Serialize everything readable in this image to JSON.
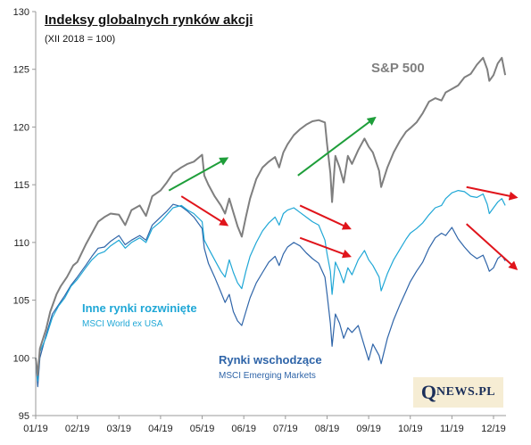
{
  "title": "Indeksy globalnych rynków akcji",
  "subtitle": "(XII 2018 = 100)",
  "logo": {
    "q": "Q",
    "rest": "NEWS.PL"
  },
  "colors": {
    "sp500": "#7f7f7f",
    "developed": "#1fa7d6",
    "emerging": "#2e64a8",
    "up_arrow": "#1e9e3a",
    "down_arrow": "#e0141b"
  },
  "labels": {
    "sp500": "S&P 500",
    "developed": "Inne rynki rozwinięte",
    "developed_sub": "MSCI World ex USA",
    "emerging": "Rynki wschodzące",
    "emerging_sub": "MSCI Emerging Markets"
  },
  "chart_data": {
    "type": "line",
    "title": "Indeksy globalnych rynków akcji",
    "subtitle": "(XII 2018 = 100)",
    "xlabel": "",
    "ylabel": "",
    "x_ticks": [
      "01/19",
      "02/19",
      "03/19",
      "04/19",
      "05/19",
      "06/19",
      "07/19",
      "08/19",
      "09/19",
      "10/19",
      "11/19",
      "12/19"
    ],
    "y_ticks": [
      95,
      100,
      105,
      110,
      115,
      120,
      125,
      130
    ],
    "ylim": [
      95,
      130
    ],
    "xlim": [
      0,
      11.3
    ],
    "grid": false,
    "series": [
      {
        "name": "S&P 500",
        "points": [
          [
            0,
            100
          ],
          [
            0.05,
            98.5
          ],
          [
            0.1,
            100.8
          ],
          [
            0.25,
            102.5
          ],
          [
            0.35,
            104
          ],
          [
            0.5,
            105.5
          ],
          [
            0.6,
            106.2
          ],
          [
            0.75,
            107
          ],
          [
            0.9,
            108
          ],
          [
            1,
            108.3
          ],
          [
            1.2,
            109.8
          ],
          [
            1.35,
            110.8
          ],
          [
            1.5,
            111.8
          ],
          [
            1.65,
            112.2
          ],
          [
            1.8,
            112.5
          ],
          [
            2,
            112.4
          ],
          [
            2.15,
            111.5
          ],
          [
            2.3,
            112.8
          ],
          [
            2.5,
            113.2
          ],
          [
            2.65,
            112.3
          ],
          [
            2.8,
            114
          ],
          [
            3,
            114.5
          ],
          [
            3.15,
            115.2
          ],
          [
            3.3,
            116
          ],
          [
            3.5,
            116.5
          ],
          [
            3.65,
            116.8
          ],
          [
            3.8,
            117
          ],
          [
            4,
            117.6
          ],
          [
            4.05,
            115.8
          ],
          [
            4.15,
            115
          ],
          [
            4.3,
            114
          ],
          [
            4.45,
            113.2
          ],
          [
            4.55,
            112.5
          ],
          [
            4.65,
            113.8
          ],
          [
            4.75,
            112.6
          ],
          [
            4.85,
            111.4
          ],
          [
            4.95,
            110.5
          ],
          [
            5.05,
            112.2
          ],
          [
            5.15,
            113.8
          ],
          [
            5.3,
            115.5
          ],
          [
            5.45,
            116.5
          ],
          [
            5.6,
            117
          ],
          [
            5.75,
            117.4
          ],
          [
            5.85,
            116.5
          ],
          [
            5.95,
            117.8
          ],
          [
            6.05,
            118.5
          ],
          [
            6.2,
            119.3
          ],
          [
            6.35,
            119.8
          ],
          [
            6.5,
            120.2
          ],
          [
            6.65,
            120.5
          ],
          [
            6.8,
            120.6
          ],
          [
            6.95,
            120.4
          ],
          [
            7,
            118.5
          ],
          [
            7.08,
            116
          ],
          [
            7.12,
            113.5
          ],
          [
            7.2,
            117.5
          ],
          [
            7.3,
            116.5
          ],
          [
            7.4,
            115.2
          ],
          [
            7.5,
            117.5
          ],
          [
            7.6,
            116.8
          ],
          [
            7.75,
            118
          ],
          [
            7.9,
            119
          ],
          [
            8,
            118.3
          ],
          [
            8.1,
            117.8
          ],
          [
            8.25,
            116.2
          ],
          [
            8.3,
            114.8
          ],
          [
            8.45,
            116.5
          ],
          [
            8.6,
            117.8
          ],
          [
            8.75,
            118.8
          ],
          [
            8.9,
            119.6
          ],
          [
            9,
            119.9
          ],
          [
            9.15,
            120.4
          ],
          [
            9.3,
            121.2
          ],
          [
            9.45,
            122.2
          ],
          [
            9.6,
            122.5
          ],
          [
            9.75,
            122.3
          ],
          [
            9.85,
            123
          ],
          [
            10,
            123.3
          ],
          [
            10.15,
            123.6
          ],
          [
            10.3,
            124.3
          ],
          [
            10.45,
            124.6
          ],
          [
            10.6,
            125.4
          ],
          [
            10.75,
            126
          ],
          [
            10.85,
            125
          ],
          [
            10.9,
            124
          ],
          [
            11,
            124.5
          ],
          [
            11.1,
            125.5
          ],
          [
            11.2,
            126
          ],
          [
            11.28,
            124.5
          ]
        ]
      },
      {
        "name": "MSCI World ex USA",
        "points": [
          [
            0,
            100
          ],
          [
            0.05,
            98
          ],
          [
            0.1,
            100.5
          ],
          [
            0.25,
            101.8
          ],
          [
            0.4,
            103.5
          ],
          [
            0.55,
            104.5
          ],
          [
            0.7,
            105.2
          ],
          [
            0.85,
            106.2
          ],
          [
            1,
            106.8
          ],
          [
            1.2,
            107.8
          ],
          [
            1.35,
            108.5
          ],
          [
            1.5,
            109
          ],
          [
            1.65,
            109.2
          ],
          [
            1.8,
            109.7
          ],
          [
            2,
            110.2
          ],
          [
            2.15,
            109.5
          ],
          [
            2.3,
            110
          ],
          [
            2.5,
            110.4
          ],
          [
            2.65,
            110
          ],
          [
            2.8,
            111.2
          ],
          [
            3,
            111.8
          ],
          [
            3.15,
            112.4
          ],
          [
            3.3,
            113
          ],
          [
            3.5,
            113.2
          ],
          [
            3.65,
            112.8
          ],
          [
            3.8,
            112.5
          ],
          [
            4,
            111.8
          ],
          [
            4.05,
            110.2
          ],
          [
            4.15,
            109.5
          ],
          [
            4.3,
            108.5
          ],
          [
            4.45,
            107.5
          ],
          [
            4.55,
            107
          ],
          [
            4.65,
            108.5
          ],
          [
            4.75,
            107.4
          ],
          [
            4.85,
            106.5
          ],
          [
            4.95,
            106
          ],
          [
            5.05,
            107.5
          ],
          [
            5.15,
            108.8
          ],
          [
            5.3,
            110
          ],
          [
            5.45,
            111
          ],
          [
            5.6,
            111.7
          ],
          [
            5.75,
            112.2
          ],
          [
            5.85,
            111.5
          ],
          [
            5.95,
            112.5
          ],
          [
            6.05,
            112.8
          ],
          [
            6.2,
            113
          ],
          [
            6.35,
            112.6
          ],
          [
            6.5,
            112.2
          ],
          [
            6.65,
            111.8
          ],
          [
            6.8,
            111.5
          ],
          [
            6.95,
            110.2
          ],
          [
            7,
            109
          ],
          [
            7.08,
            107.5
          ],
          [
            7.12,
            105.5
          ],
          [
            7.2,
            108.3
          ],
          [
            7.3,
            107.5
          ],
          [
            7.4,
            106.5
          ],
          [
            7.5,
            107.8
          ],
          [
            7.6,
            107.2
          ],
          [
            7.75,
            108.5
          ],
          [
            7.9,
            109.3
          ],
          [
            8,
            108.5
          ],
          [
            8.1,
            108
          ],
          [
            8.25,
            107
          ],
          [
            8.3,
            105.8
          ],
          [
            8.45,
            107.3
          ],
          [
            8.6,
            108.5
          ],
          [
            8.75,
            109.4
          ],
          [
            8.9,
            110.3
          ],
          [
            9,
            110.8
          ],
          [
            9.15,
            111.2
          ],
          [
            9.3,
            111.7
          ],
          [
            9.45,
            112.4
          ],
          [
            9.6,
            113
          ],
          [
            9.75,
            113.2
          ],
          [
            9.85,
            113.8
          ],
          [
            10,
            114.3
          ],
          [
            10.15,
            114.5
          ],
          [
            10.3,
            114.4
          ],
          [
            10.45,
            114
          ],
          [
            10.6,
            113.9
          ],
          [
            10.75,
            114.2
          ],
          [
            10.85,
            113.3
          ],
          [
            10.9,
            112.5
          ],
          [
            11,
            113
          ],
          [
            11.1,
            113.5
          ],
          [
            11.2,
            113.8
          ],
          [
            11.28,
            113.2
          ]
        ]
      },
      {
        "name": "MSCI Emerging Markets",
        "points": [
          [
            0,
            100
          ],
          [
            0.05,
            97.5
          ],
          [
            0.1,
            100
          ],
          [
            0.25,
            102
          ],
          [
            0.4,
            103.8
          ],
          [
            0.55,
            104.6
          ],
          [
            0.7,
            105.4
          ],
          [
            0.85,
            106.3
          ],
          [
            1,
            107
          ],
          [
            1.2,
            108
          ],
          [
            1.35,
            108.8
          ],
          [
            1.5,
            109.5
          ],
          [
            1.65,
            109.6
          ],
          [
            1.8,
            110.1
          ],
          [
            2,
            110.6
          ],
          [
            2.15,
            109.8
          ],
          [
            2.3,
            110.2
          ],
          [
            2.5,
            110.6
          ],
          [
            2.65,
            110.2
          ],
          [
            2.8,
            111.5
          ],
          [
            3,
            112.2
          ],
          [
            3.15,
            112.7
          ],
          [
            3.3,
            113.3
          ],
          [
            3.5,
            113.1
          ],
          [
            3.65,
            112.7
          ],
          [
            3.8,
            112.2
          ],
          [
            4,
            111.2
          ],
          [
            4.05,
            109.5
          ],
          [
            4.15,
            108.2
          ],
          [
            4.3,
            107
          ],
          [
            4.45,
            105.7
          ],
          [
            4.55,
            104.8
          ],
          [
            4.65,
            105.5
          ],
          [
            4.75,
            104
          ],
          [
            4.85,
            103.2
          ],
          [
            4.95,
            102.8
          ],
          [
            5.05,
            104
          ],
          [
            5.15,
            105.2
          ],
          [
            5.3,
            106.5
          ],
          [
            5.45,
            107.4
          ],
          [
            5.6,
            108.3
          ],
          [
            5.75,
            108.8
          ],
          [
            5.85,
            108
          ],
          [
            5.95,
            109
          ],
          [
            6.05,
            109.6
          ],
          [
            6.2,
            110
          ],
          [
            6.35,
            109.7
          ],
          [
            6.5,
            109.1
          ],
          [
            6.65,
            108.6
          ],
          [
            6.8,
            108.2
          ],
          [
            6.95,
            107
          ],
          [
            7,
            105.5
          ],
          [
            7.08,
            103
          ],
          [
            7.12,
            101
          ],
          [
            7.2,
            103.8
          ],
          [
            7.3,
            103
          ],
          [
            7.4,
            101.7
          ],
          [
            7.5,
            102.6
          ],
          [
            7.6,
            102.2
          ],
          [
            7.75,
            102.8
          ],
          [
            7.9,
            101
          ],
          [
            8,
            99.8
          ],
          [
            8.1,
            101.2
          ],
          [
            8.25,
            100.2
          ],
          [
            8.3,
            99.5
          ],
          [
            8.45,
            101.7
          ],
          [
            8.6,
            103.3
          ],
          [
            8.75,
            104.6
          ],
          [
            8.9,
            105.8
          ],
          [
            9,
            106.6
          ],
          [
            9.15,
            107.5
          ],
          [
            9.3,
            108.3
          ],
          [
            9.45,
            109.5
          ],
          [
            9.6,
            110.4
          ],
          [
            9.75,
            110.8
          ],
          [
            9.85,
            110.6
          ],
          [
            10,
            111.3
          ],
          [
            10.15,
            110.3
          ],
          [
            10.3,
            109.6
          ],
          [
            10.45,
            109
          ],
          [
            10.6,
            108.6
          ],
          [
            10.75,
            108.9
          ],
          [
            10.85,
            108
          ],
          [
            10.9,
            107.5
          ],
          [
            11,
            107.8
          ],
          [
            11.1,
            108.6
          ],
          [
            11.2,
            108.9
          ],
          [
            11.28,
            108.4
          ]
        ]
      }
    ],
    "annotations": {
      "up_arrows": [
        [
          [
            3.2,
            114.5
          ],
          [
            4.6,
            117.3
          ]
        ],
        [
          [
            6.3,
            115.8
          ],
          [
            8.15,
            120.8
          ]
        ]
      ],
      "down_arrows": [
        [
          [
            3.5,
            114
          ],
          [
            4.6,
            111.5
          ]
        ],
        [
          [
            6.35,
            113.2
          ],
          [
            7.55,
            111.2
          ]
        ],
        [
          [
            6.35,
            110.4
          ],
          [
            7.55,
            108.8
          ]
        ],
        [
          [
            10.35,
            114.8
          ],
          [
            11.55,
            113.9
          ]
        ],
        [
          [
            10.35,
            111.6
          ],
          [
            11.55,
            107.7
          ]
        ]
      ]
    }
  }
}
